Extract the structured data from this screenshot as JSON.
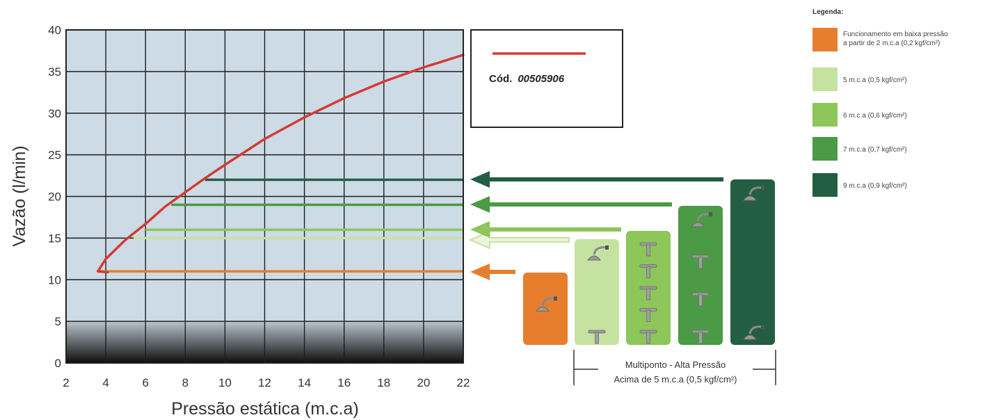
{
  "chart_data": {
    "type": "line",
    "title": "",
    "xlabel": "Pressão estática (m.c.a)",
    "ylabel": "Vazão (l/min)",
    "xlim": [
      2,
      22
    ],
    "ylim": [
      0,
      40
    ],
    "xticks": [
      "2",
      "4",
      "6",
      "8",
      "10",
      "12",
      "14",
      "16",
      "18",
      "20",
      "22"
    ],
    "yticks": [
      "0",
      "5",
      "10",
      "15",
      "20",
      "25",
      "30",
      "35",
      "40"
    ],
    "grid": true,
    "series": [
      {
        "name": "Cód. 00505906",
        "color": "#d63a32",
        "x": [
          3.6,
          4.0,
          5.0,
          6.0,
          7.0,
          8.0,
          9.0,
          10.0,
          12.0,
          14.0,
          16.0,
          18.0,
          20.0,
          22.0
        ],
        "y": [
          11.0,
          12.5,
          14.8,
          16.7,
          18.8,
          20.5,
          22.2,
          23.8,
          26.9,
          29.5,
          31.8,
          33.8,
          35.5,
          37.0
        ]
      }
    ],
    "levels": [
      {
        "label": "Funcionamento em baixa pressão a partir de 2 m.c.a (0,2 kgf/cm²)",
        "color": "#e67e2d",
        "y": 11,
        "x_start": 3.6
      },
      {
        "label": "5 m.c.a (0,5 kgf/cm²)",
        "color": "#c6e2a0",
        "y": 15,
        "x_start": 5.4
      },
      {
        "label": "6 m.c.a (0,6 kgf/cm²)",
        "color": "#8dc659",
        "y": 16,
        "x_start": 6.0
      },
      {
        "label": "7 m.c.a (0,7 kgf/cm²)",
        "color": "#4b9a45",
        "y": 19,
        "x_start": 7.3
      },
      {
        "label": "9 m.c.a (0,9 kgf/cm²)",
        "color": "#235e42",
        "y": 22,
        "x_start": 9.0
      }
    ]
  },
  "code_box": {
    "prefix": "Cód.",
    "code": "00505906"
  },
  "legend": {
    "title": "Legenda:",
    "items": [
      {
        "color": "#e67e2d",
        "lines": [
          "Funcionamento em baixa pressão",
          "a partir de 2 m.c.a (0,2 kgf/cm²)"
        ]
      },
      {
        "color": "#c6e2a0",
        "lines": [
          "5 m.c.a (0,5 kgf/cm²)"
        ]
      },
      {
        "color": "#8dc659",
        "lines": [
          "6 m.c.a (0,6 kgf/cm²)"
        ]
      },
      {
        "color": "#4b9a45",
        "lines": [
          "7 m.c.a (0,7 kgf/cm²)"
        ]
      },
      {
        "color": "#235e42",
        "lines": [
          "9 m.c.a (0,9 kgf/cm²)"
        ]
      }
    ]
  },
  "bracket": {
    "line1": "Multiponto - Alta Pressão",
    "line2": "Acima de 5 m.c.a (0,5 kgf/cm²)"
  },
  "devices": [
    {
      "color": "#e67e2d",
      "icons": [
        "shower-head"
      ]
    },
    {
      "color": "#c6e2a0",
      "icons": [
        "shower-head",
        "faucet"
      ]
    },
    {
      "color": "#8dc659",
      "icons": [
        "faucet",
        "faucet",
        "faucet",
        "faucet",
        "faucet"
      ]
    },
    {
      "color": "#4b9a45",
      "icons": [
        "shower-head",
        "faucet",
        "faucet",
        "faucet"
      ]
    },
    {
      "color": "#235e42",
      "icons": [
        "shower-head",
        "shower-head"
      ]
    }
  ]
}
